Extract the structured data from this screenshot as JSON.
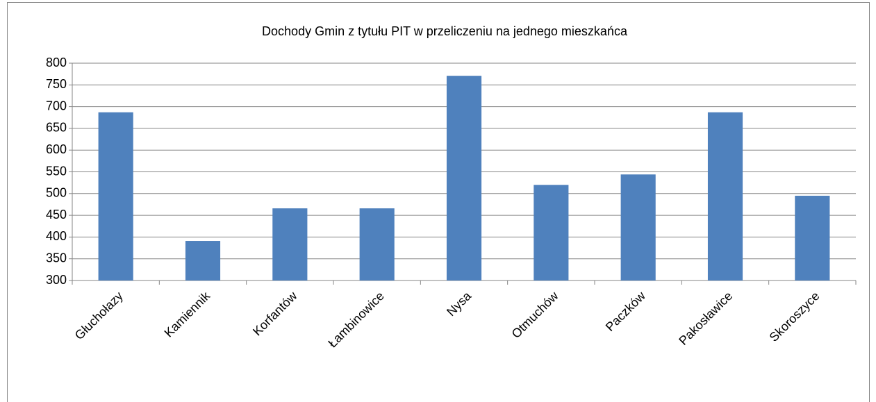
{
  "chart_data": {
    "type": "bar",
    "title": "Dochody Gmin z tytułu PIT w przeliczeniu na jednego mieszkańca",
    "categories": [
      "Głuchołazy",
      "Kamiennik",
      "Korfantów",
      "Łambinowice",
      "Nysa",
      "Otmuchów",
      "Paczków",
      "Pakosławice",
      "Skoroszyce"
    ],
    "values": [
      687,
      391,
      466,
      466,
      771,
      520,
      544,
      687,
      495
    ],
    "color": "#4f81bd",
    "ylim": [
      300,
      800
    ],
    "yticks": [
      300,
      350,
      400,
      450,
      500,
      550,
      600,
      650,
      700,
      750,
      800
    ],
    "grid": true
  }
}
